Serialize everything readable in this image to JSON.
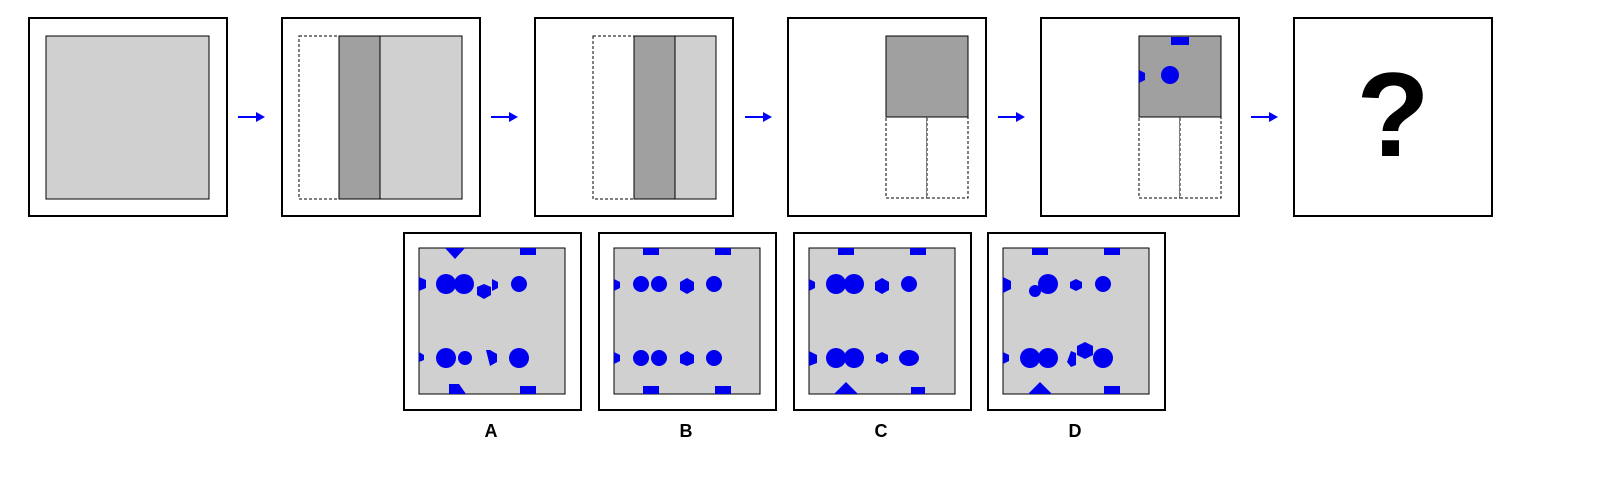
{
  "puzzle": {
    "sequence_steps": 5,
    "question_mark": "?",
    "colors": {
      "light_gray": "#d0d0d0",
      "dark_gray": "#a0a0a0",
      "shape_blue": "#0000ee",
      "arrow_blue": "#0000ff",
      "border": "#000000"
    }
  },
  "options": [
    {
      "label": "A"
    },
    {
      "label": "B"
    },
    {
      "label": "C"
    },
    {
      "label": "D"
    }
  ]
}
